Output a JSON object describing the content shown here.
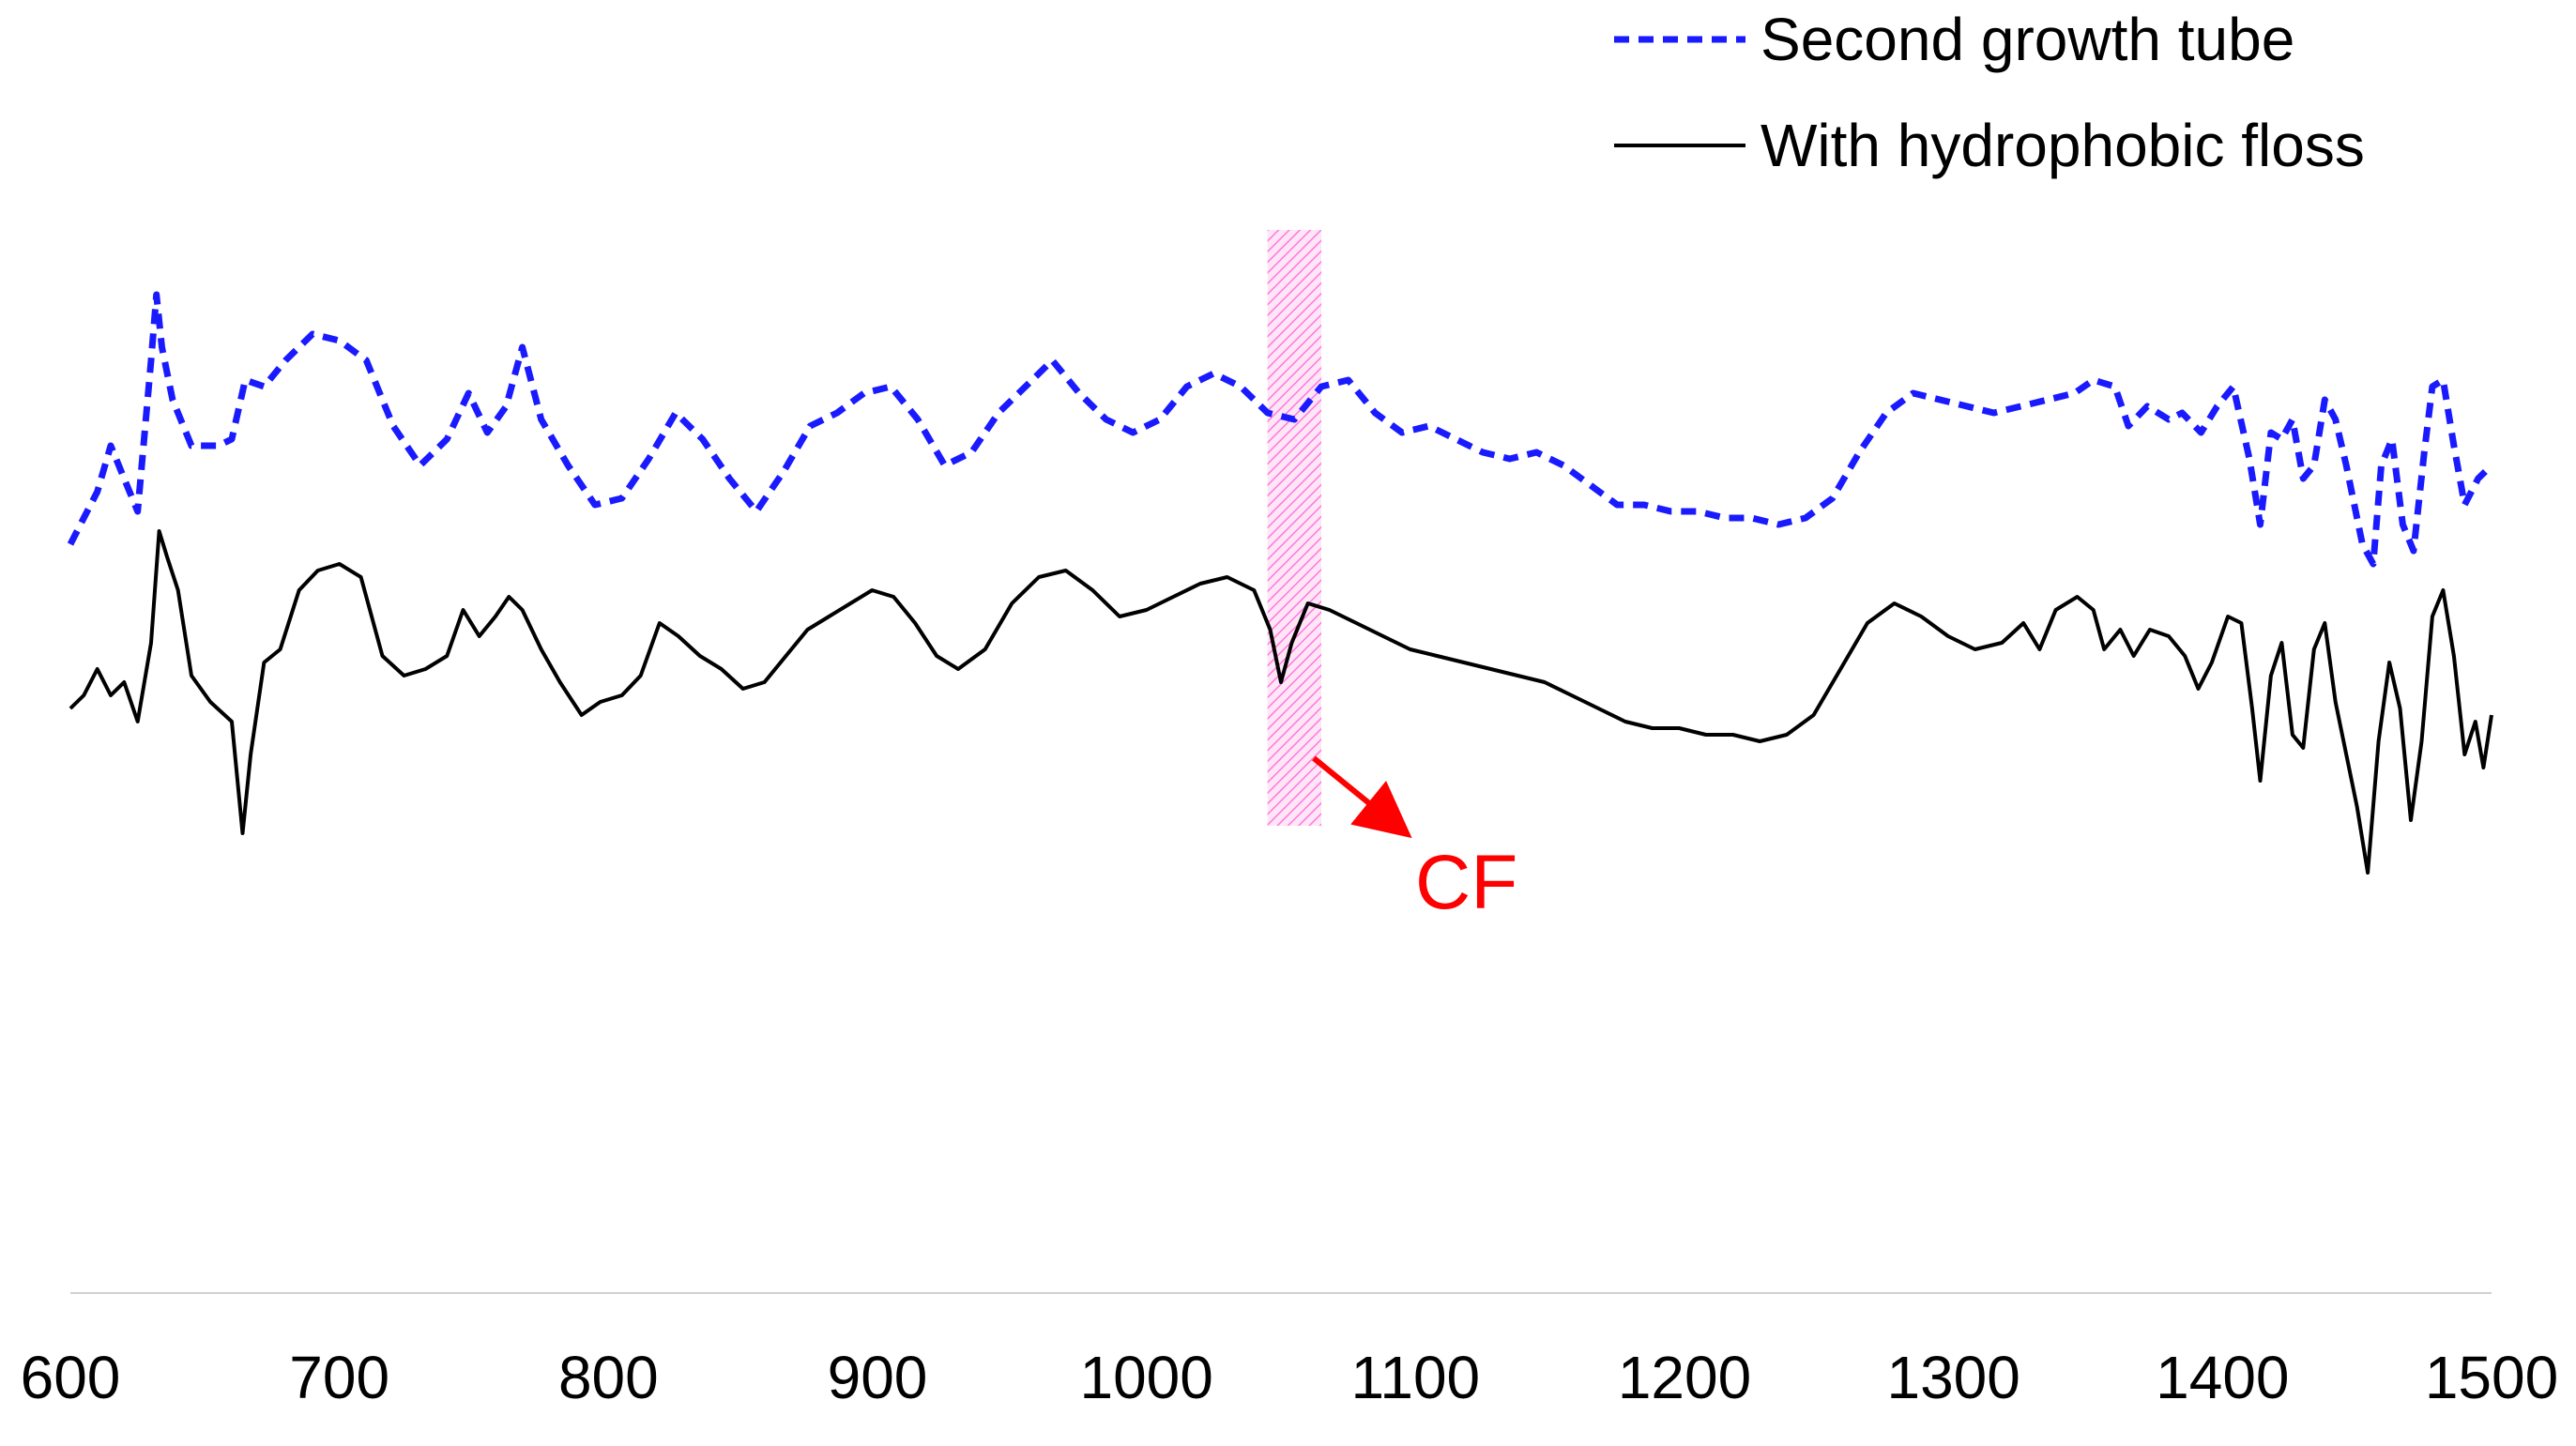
{
  "chart_data": {
    "type": "line",
    "title": "",
    "xlabel": "",
    "ylabel": "",
    "xlim": [
      600,
      1500
    ],
    "x_ticks": [
      "600",
      "700",
      "800",
      "900",
      "1000",
      "1100",
      "1200",
      "1300",
      "1400",
      "1500"
    ],
    "y_axis_shown": false,
    "grid": false,
    "legend_position": "top-right",
    "series": [
      {
        "name": "Second growth tube",
        "color": "#1a1aff",
        "style": "dashed",
        "points": [
          [
            600,
            0.6
          ],
          [
            605,
            0.64
          ],
          [
            610,
            0.68
          ],
          [
            615,
            0.75
          ],
          [
            620,
            0.7
          ],
          [
            625,
            0.65
          ],
          [
            630,
            0.88
          ],
          [
            632,
            0.98
          ],
          [
            634,
            0.9
          ],
          [
            638,
            0.82
          ],
          [
            645,
            0.75
          ],
          [
            655,
            0.75
          ],
          [
            660,
            0.76
          ],
          [
            665,
            0.85
          ],
          [
            672,
            0.84
          ],
          [
            680,
            0.88
          ],
          [
            690,
            0.92
          ],
          [
            700,
            0.91
          ],
          [
            710,
            0.88
          ],
          [
            720,
            0.78
          ],
          [
            730,
            0.72
          ],
          [
            740,
            0.76
          ],
          [
            748,
            0.83
          ],
          [
            755,
            0.77
          ],
          [
            762,
            0.81
          ],
          [
            768,
            0.9
          ],
          [
            775,
            0.79
          ],
          [
            785,
            0.72
          ],
          [
            795,
            0.66
          ],
          [
            805,
            0.67
          ],
          [
            815,
            0.73
          ],
          [
            825,
            0.8
          ],
          [
            835,
            0.76
          ],
          [
            845,
            0.7
          ],
          [
            855,
            0.65
          ],
          [
            865,
            0.71
          ],
          [
            875,
            0.78
          ],
          [
            885,
            0.8
          ],
          [
            895,
            0.83
          ],
          [
            905,
            0.84
          ],
          [
            915,
            0.79
          ],
          [
            925,
            0.72
          ],
          [
            935,
            0.74
          ],
          [
            945,
            0.8
          ],
          [
            955,
            0.84
          ],
          [
            965,
            0.88
          ],
          [
            975,
            0.83
          ],
          [
            985,
            0.79
          ],
          [
            995,
            0.77
          ],
          [
            1005,
            0.79
          ],
          [
            1015,
            0.84
          ],
          [
            1025,
            0.86
          ],
          [
            1035,
            0.84
          ],
          [
            1045,
            0.8
          ],
          [
            1055,
            0.79
          ],
          [
            1065,
            0.84
          ],
          [
            1075,
            0.85
          ],
          [
            1085,
            0.8
          ],
          [
            1095,
            0.77
          ],
          [
            1105,
            0.78
          ],
          [
            1115,
            0.76
          ],
          [
            1125,
            0.74
          ],
          [
            1135,
            0.73
          ],
          [
            1145,
            0.74
          ],
          [
            1155,
            0.72
          ],
          [
            1165,
            0.69
          ],
          [
            1175,
            0.66
          ],
          [
            1185,
            0.66
          ],
          [
            1195,
            0.65
          ],
          [
            1205,
            0.65
          ],
          [
            1215,
            0.64
          ],
          [
            1225,
            0.64
          ],
          [
            1235,
            0.63
          ],
          [
            1245,
            0.64
          ],
          [
            1255,
            0.67
          ],
          [
            1265,
            0.74
          ],
          [
            1275,
            0.8
          ],
          [
            1285,
            0.83
          ],
          [
            1295,
            0.82
          ],
          [
            1305,
            0.81
          ],
          [
            1315,
            0.8
          ],
          [
            1325,
            0.81
          ],
          [
            1335,
            0.82
          ],
          [
            1345,
            0.83
          ],
          [
            1352,
            0.85
          ],
          [
            1360,
            0.84
          ],
          [
            1365,
            0.78
          ],
          [
            1372,
            0.81
          ],
          [
            1380,
            0.79
          ],
          [
            1385,
            0.8
          ],
          [
            1392,
            0.77
          ],
          [
            1398,
            0.81
          ],
          [
            1404,
            0.84
          ],
          [
            1410,
            0.73
          ],
          [
            1414,
            0.63
          ],
          [
            1418,
            0.77
          ],
          [
            1422,
            0.76
          ],
          [
            1426,
            0.79
          ],
          [
            1430,
            0.7
          ],
          [
            1434,
            0.72
          ],
          [
            1438,
            0.82
          ],
          [
            1442,
            0.79
          ],
          [
            1446,
            0.72
          ],
          [
            1452,
            0.6
          ],
          [
            1456,
            0.57
          ],
          [
            1459,
            0.72
          ],
          [
            1463,
            0.76
          ],
          [
            1467,
            0.63
          ],
          [
            1471,
            0.59
          ],
          [
            1475,
            0.74
          ],
          [
            1478,
            0.84
          ],
          [
            1482,
            0.85
          ],
          [
            1486,
            0.75
          ],
          [
            1490,
            0.66
          ],
          [
            1495,
            0.7
          ],
          [
            1500,
            0.72
          ]
        ]
      },
      {
        "name": "With hydrophobic floss",
        "color": "#000000",
        "style": "solid",
        "points": [
          [
            600,
            0.35
          ],
          [
            605,
            0.37
          ],
          [
            610,
            0.41
          ],
          [
            615,
            0.37
          ],
          [
            620,
            0.39
          ],
          [
            625,
            0.33
          ],
          [
            630,
            0.45
          ],
          [
            633,
            0.62
          ],
          [
            636,
            0.58
          ],
          [
            640,
            0.53
          ],
          [
            645,
            0.4
          ],
          [
            652,
            0.36
          ],
          [
            660,
            0.33
          ],
          [
            664,
            0.16
          ],
          [
            667,
            0.28
          ],
          [
            672,
            0.42
          ],
          [
            678,
            0.44
          ],
          [
            685,
            0.53
          ],
          [
            692,
            0.56
          ],
          [
            700,
            0.57
          ],
          [
            708,
            0.55
          ],
          [
            716,
            0.43
          ],
          [
            724,
            0.4
          ],
          [
            732,
            0.41
          ],
          [
            740,
            0.43
          ],
          [
            746,
            0.5
          ],
          [
            752,
            0.46
          ],
          [
            758,
            0.49
          ],
          [
            763,
            0.52
          ],
          [
            768,
            0.5
          ],
          [
            775,
            0.44
          ],
          [
            782,
            0.39
          ],
          [
            790,
            0.34
          ],
          [
            797,
            0.36
          ],
          [
            805,
            0.37
          ],
          [
            812,
            0.4
          ],
          [
            819,
            0.48
          ],
          [
            826,
            0.46
          ],
          [
            834,
            0.43
          ],
          [
            842,
            0.41
          ],
          [
            850,
            0.38
          ],
          [
            858,
            0.39
          ],
          [
            866,
            0.43
          ],
          [
            874,
            0.47
          ],
          [
            882,
            0.49
          ],
          [
            890,
            0.51
          ],
          [
            898,
            0.53
          ],
          [
            906,
            0.52
          ],
          [
            914,
            0.48
          ],
          [
            922,
            0.43
          ],
          [
            930,
            0.41
          ],
          [
            940,
            0.44
          ],
          [
            950,
            0.51
          ],
          [
            960,
            0.55
          ],
          [
            970,
            0.56
          ],
          [
            980,
            0.53
          ],
          [
            990,
            0.49
          ],
          [
            1000,
            0.5
          ],
          [
            1010,
            0.52
          ],
          [
            1020,
            0.54
          ],
          [
            1030,
            0.55
          ],
          [
            1040,
            0.53
          ],
          [
            1046,
            0.47
          ],
          [
            1050,
            0.39
          ],
          [
            1054,
            0.45
          ],
          [
            1060,
            0.51
          ],
          [
            1068,
            0.5
          ],
          [
            1078,
            0.48
          ],
          [
            1088,
            0.46
          ],
          [
            1098,
            0.44
          ],
          [
            1108,
            0.43
          ],
          [
            1118,
            0.42
          ],
          [
            1128,
            0.41
          ],
          [
            1138,
            0.4
          ],
          [
            1148,
            0.39
          ],
          [
            1158,
            0.37
          ],
          [
            1168,
            0.35
          ],
          [
            1178,
            0.33
          ],
          [
            1188,
            0.32
          ],
          [
            1198,
            0.32
          ],
          [
            1208,
            0.31
          ],
          [
            1218,
            0.31
          ],
          [
            1228,
            0.3
          ],
          [
            1238,
            0.31
          ],
          [
            1248,
            0.34
          ],
          [
            1258,
            0.41
          ],
          [
            1268,
            0.48
          ],
          [
            1278,
            0.51
          ],
          [
            1288,
            0.49
          ],
          [
            1298,
            0.46
          ],
          [
            1308,
            0.44
          ],
          [
            1318,
            0.45
          ],
          [
            1326,
            0.48
          ],
          [
            1332,
            0.44
          ],
          [
            1338,
            0.5
          ],
          [
            1346,
            0.52
          ],
          [
            1352,
            0.5
          ],
          [
            1356,
            0.44
          ],
          [
            1362,
            0.47
          ],
          [
            1367,
            0.43
          ],
          [
            1373,
            0.47
          ],
          [
            1380,
            0.46
          ],
          [
            1386,
            0.43
          ],
          [
            1391,
            0.38
          ],
          [
            1396,
            0.42
          ],
          [
            1402,
            0.49
          ],
          [
            1407,
            0.48
          ],
          [
            1411,
            0.35
          ],
          [
            1414,
            0.24
          ],
          [
            1418,
            0.4
          ],
          [
            1422,
            0.45
          ],
          [
            1426,
            0.31
          ],
          [
            1430,
            0.29
          ],
          [
            1434,
            0.44
          ],
          [
            1438,
            0.48
          ],
          [
            1442,
            0.36
          ],
          [
            1446,
            0.28
          ],
          [
            1450,
            0.2
          ],
          [
            1454,
            0.1
          ],
          [
            1458,
            0.3
          ],
          [
            1462,
            0.42
          ],
          [
            1466,
            0.35
          ],
          [
            1470,
            0.18
          ],
          [
            1474,
            0.3
          ],
          [
            1478,
            0.49
          ],
          [
            1482,
            0.53
          ],
          [
            1486,
            0.43
          ],
          [
            1490,
            0.28
          ],
          [
            1494,
            0.33
          ],
          [
            1497,
            0.26
          ],
          [
            1500,
            0.34
          ]
        ]
      }
    ],
    "annotations": [
      {
        "text": "CF",
        "color": "#ff0000",
        "highlight_band_x": [
          1045,
          1065
        ],
        "highlight_color": "#ff66cc",
        "arrow": true
      }
    ]
  }
}
